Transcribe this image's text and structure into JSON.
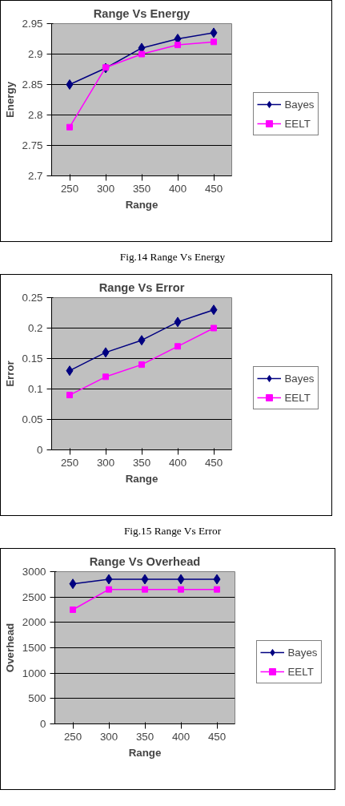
{
  "chart_data": [
    {
      "type": "line",
      "title": "Range Vs Energy",
      "xlabel": "Range",
      "ylabel": "Energy",
      "categories": [
        "250",
        "300",
        "350",
        "400",
        "450"
      ],
      "ylim": [
        2.7,
        2.95
      ],
      "yticks": [
        2.7,
        2.75,
        2.8,
        2.85,
        2.9,
        2.95
      ],
      "grid": "y",
      "legend": "right",
      "line_style": "solid",
      "series": [
        {
          "name": "Bayes",
          "color": "#000080",
          "marker": "diamond",
          "values": [
            2.85,
            2.877,
            2.91,
            2.925,
            2.935
          ]
        },
        {
          "name": "EELT",
          "color": "#ff00ff",
          "marker": "square",
          "values": [
            2.78,
            2.878,
            2.9,
            2.915,
            2.92
          ]
        }
      ],
      "annotations": [
        "Fig.14 Range Vs Energy"
      ]
    },
    {
      "type": "line",
      "title": "Range Vs Error",
      "xlabel": "Range",
      "ylabel": "Error",
      "categories": [
        "250",
        "300",
        "350",
        "400",
        "450"
      ],
      "ylim": [
        0,
        0.25
      ],
      "yticks": [
        0,
        0.05,
        0.1,
        0.15,
        0.2,
        0.25
      ],
      "grid": "y",
      "legend": "right",
      "line_style": "solid",
      "series": [
        {
          "name": "Bayes",
          "color": "#000080",
          "marker": "diamond",
          "values": [
            0.13,
            0.16,
            0.18,
            0.21,
            0.23
          ]
        },
        {
          "name": "EELT",
          "color": "#ff00ff",
          "marker": "square",
          "values": [
            0.09,
            0.12,
            0.14,
            0.17,
            0.2
          ]
        }
      ],
      "annotations": [
        "Fig.15 Range Vs Error"
      ]
    },
    {
      "type": "line",
      "title": "Range Vs Overhead",
      "xlabel": "Range",
      "ylabel": "Overhead",
      "categories": [
        "250",
        "300",
        "350",
        "400",
        "450"
      ],
      "ylim": [
        0,
        3000
      ],
      "yticks": [
        0,
        500,
        1000,
        1500,
        2000,
        2500,
        3000
      ],
      "grid": "y",
      "legend": "right",
      "line_style": "solid",
      "series": [
        {
          "name": "Bayes",
          "color": "#000080",
          "marker": "diamond",
          "values": [
            2760,
            2850,
            2850,
            2850,
            2850
          ]
        },
        {
          "name": "EELT",
          "color": "#ff00ff",
          "marker": "square",
          "values": [
            2250,
            2650,
            2650,
            2650,
            2650
          ]
        }
      ]
    }
  ]
}
